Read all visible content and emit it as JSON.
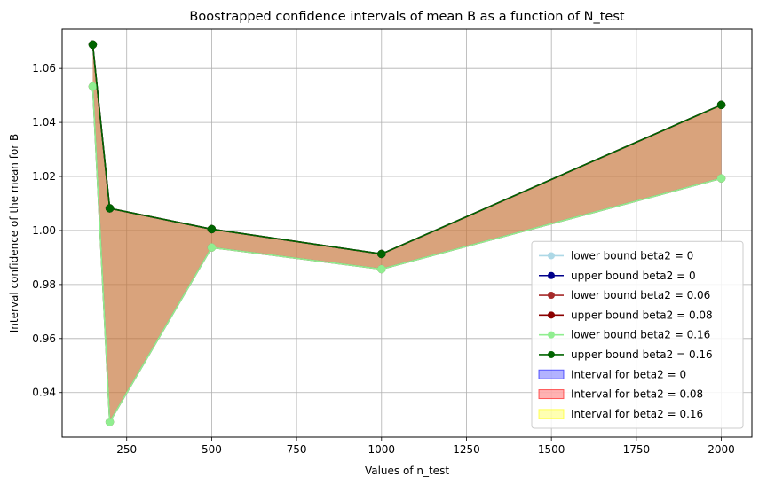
{
  "chart_data": {
    "type": "line",
    "title": "Boostrapped confidence intervals of mean B as a function of N_test",
    "xlabel": "Values of n_test",
    "ylabel": "Interval confidence of the mean for B",
    "x": [
      150,
      200,
      500,
      1000,
      2000
    ],
    "xlim": [
      60,
      2090
    ],
    "ylim": [
      0.9235,
      1.0745
    ],
    "xticks": [
      250,
      500,
      750,
      1000,
      1250,
      1500,
      1750,
      2000
    ],
    "xtick_labels": [
      "250",
      "500",
      "750",
      "1000",
      "1250",
      "1500",
      "1750",
      "2000"
    ],
    "yticks": [
      0.94,
      0.96,
      0.98,
      1.0,
      1.02,
      1.04,
      1.06
    ],
    "ytick_labels": [
      "0.94",
      "0.96",
      "0.98",
      "1.00",
      "1.02",
      "1.04",
      "1.06"
    ],
    "grid": true,
    "legend_position": "lower right",
    "series": [
      {
        "name": "lower bound beta2 = 0",
        "color": "#add8e6",
        "marker": "circle",
        "values": [
          1.0533,
          0.9291,
          0.9937,
          0.9857,
          1.0193
        ]
      },
      {
        "name": "upper bound beta2 = 0",
        "color": "#00008b",
        "marker": "circle",
        "values": [
          1.0688,
          1.0082,
          1.0005,
          0.9913,
          1.0465
        ]
      },
      {
        "name": "lower bound beta2 = 0.06",
        "color": "#a52a2a",
        "marker": "circle",
        "values": [
          1.0533,
          0.9291,
          0.9937,
          0.9857,
          1.0193
        ]
      },
      {
        "name": "upper bound beta2 = 0.08",
        "color": "#8b0000",
        "marker": "circle",
        "values": [
          1.0688,
          1.0082,
          1.0005,
          0.9913,
          1.0465
        ]
      },
      {
        "name": "lower bound beta2 = 0.16",
        "color": "#90ee90",
        "marker": "circle",
        "values": [
          1.0533,
          0.9291,
          0.9937,
          0.9857,
          1.0193
        ]
      },
      {
        "name": "upper bound beta2 = 0.16",
        "color": "#006400",
        "marker": "circle",
        "values": [
          1.0688,
          1.0082,
          1.0005,
          0.9913,
          1.0465
        ]
      }
    ],
    "intervals": [
      {
        "name": "Interval for beta2 = 0",
        "color": "#0000ff",
        "alpha": 0.3
      },
      {
        "name": "Interval for beta2 = 0.08",
        "color": "#ff0000",
        "alpha": 0.3
      },
      {
        "name": "Interval for beta2 = 0.16",
        "color": "#ffff00",
        "alpha": 0.3
      }
    ]
  }
}
